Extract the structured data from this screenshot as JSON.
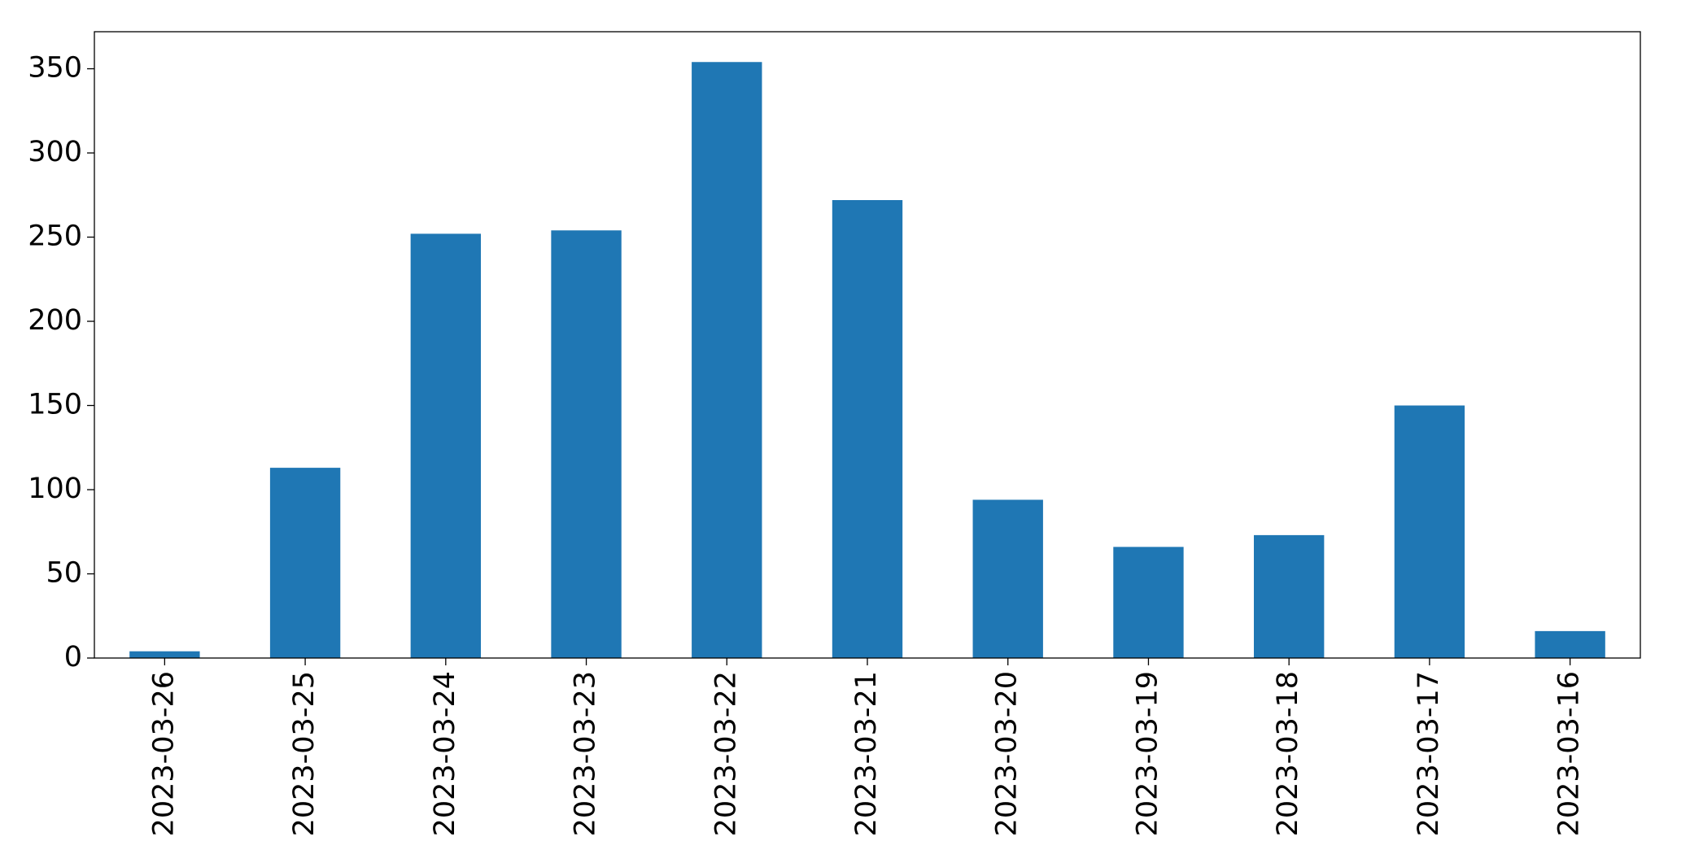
{
  "chart_data": {
    "type": "bar",
    "categories": [
      "2023-03-26",
      "2023-03-25",
      "2023-03-24",
      "2023-03-23",
      "2023-03-22",
      "2023-03-21",
      "2023-03-20",
      "2023-03-19",
      "2023-03-18",
      "2023-03-17",
      "2023-03-16"
    ],
    "values": [
      4,
      113,
      252,
      254,
      354,
      272,
      94,
      66,
      73,
      150,
      16
    ],
    "color": "#1f77b4",
    "ylim": [
      0,
      372
    ],
    "yticks": [
      0,
      50,
      100,
      150,
      200,
      250,
      300,
      350
    ],
    "grid": false
  }
}
